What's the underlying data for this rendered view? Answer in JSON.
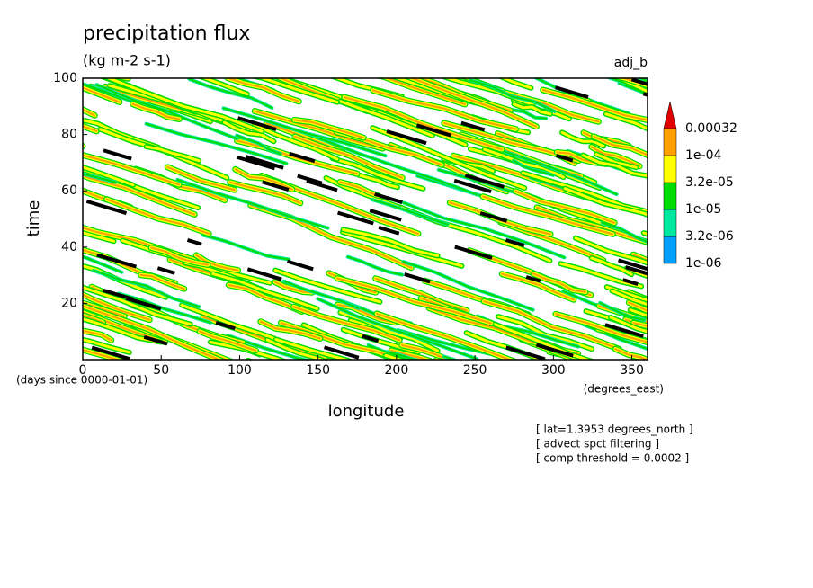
{
  "chart_data": {
    "type": "contour",
    "title": "precipitation flux",
    "subtitle": "(kg m-2 s-1)",
    "label": "adj_b",
    "xlabel": "longitude",
    "ylabel": "time",
    "x_units": "(degrees_east)",
    "y_units": "(days since 0000-01-01)",
    "xlim": [
      0,
      360
    ],
    "xticks": [
      0,
      50,
      100,
      150,
      200,
      250,
      300,
      350
    ],
    "ylim": [
      0,
      100
    ],
    "yticks": [
      20,
      40,
      60,
      80,
      100
    ],
    "colorbar": {
      "levels": [
        {
          "value": 1e-06,
          "label": "1e-06"
        },
        {
          "value": 3.2e-06,
          "label": "3.2e-06"
        },
        {
          "value": 1e-05,
          "label": "1e-05"
        },
        {
          "value": 3.2e-05,
          "label": "3.2e-05"
        },
        {
          "value": 0.0001,
          "label": "1e-04"
        },
        0.00032
      ],
      "colors": [
        "#00a0ff",
        "#00e8a0",
        "#00dc00",
        "#ffff00",
        "#ffa000",
        "#e00000"
      ]
    },
    "annotations": [
      "[ lat=1.3953 degrees_north ]",
      "[ advect spct filtering ]",
      "[ comp threshold = 0.0002 ]"
    ]
  }
}
